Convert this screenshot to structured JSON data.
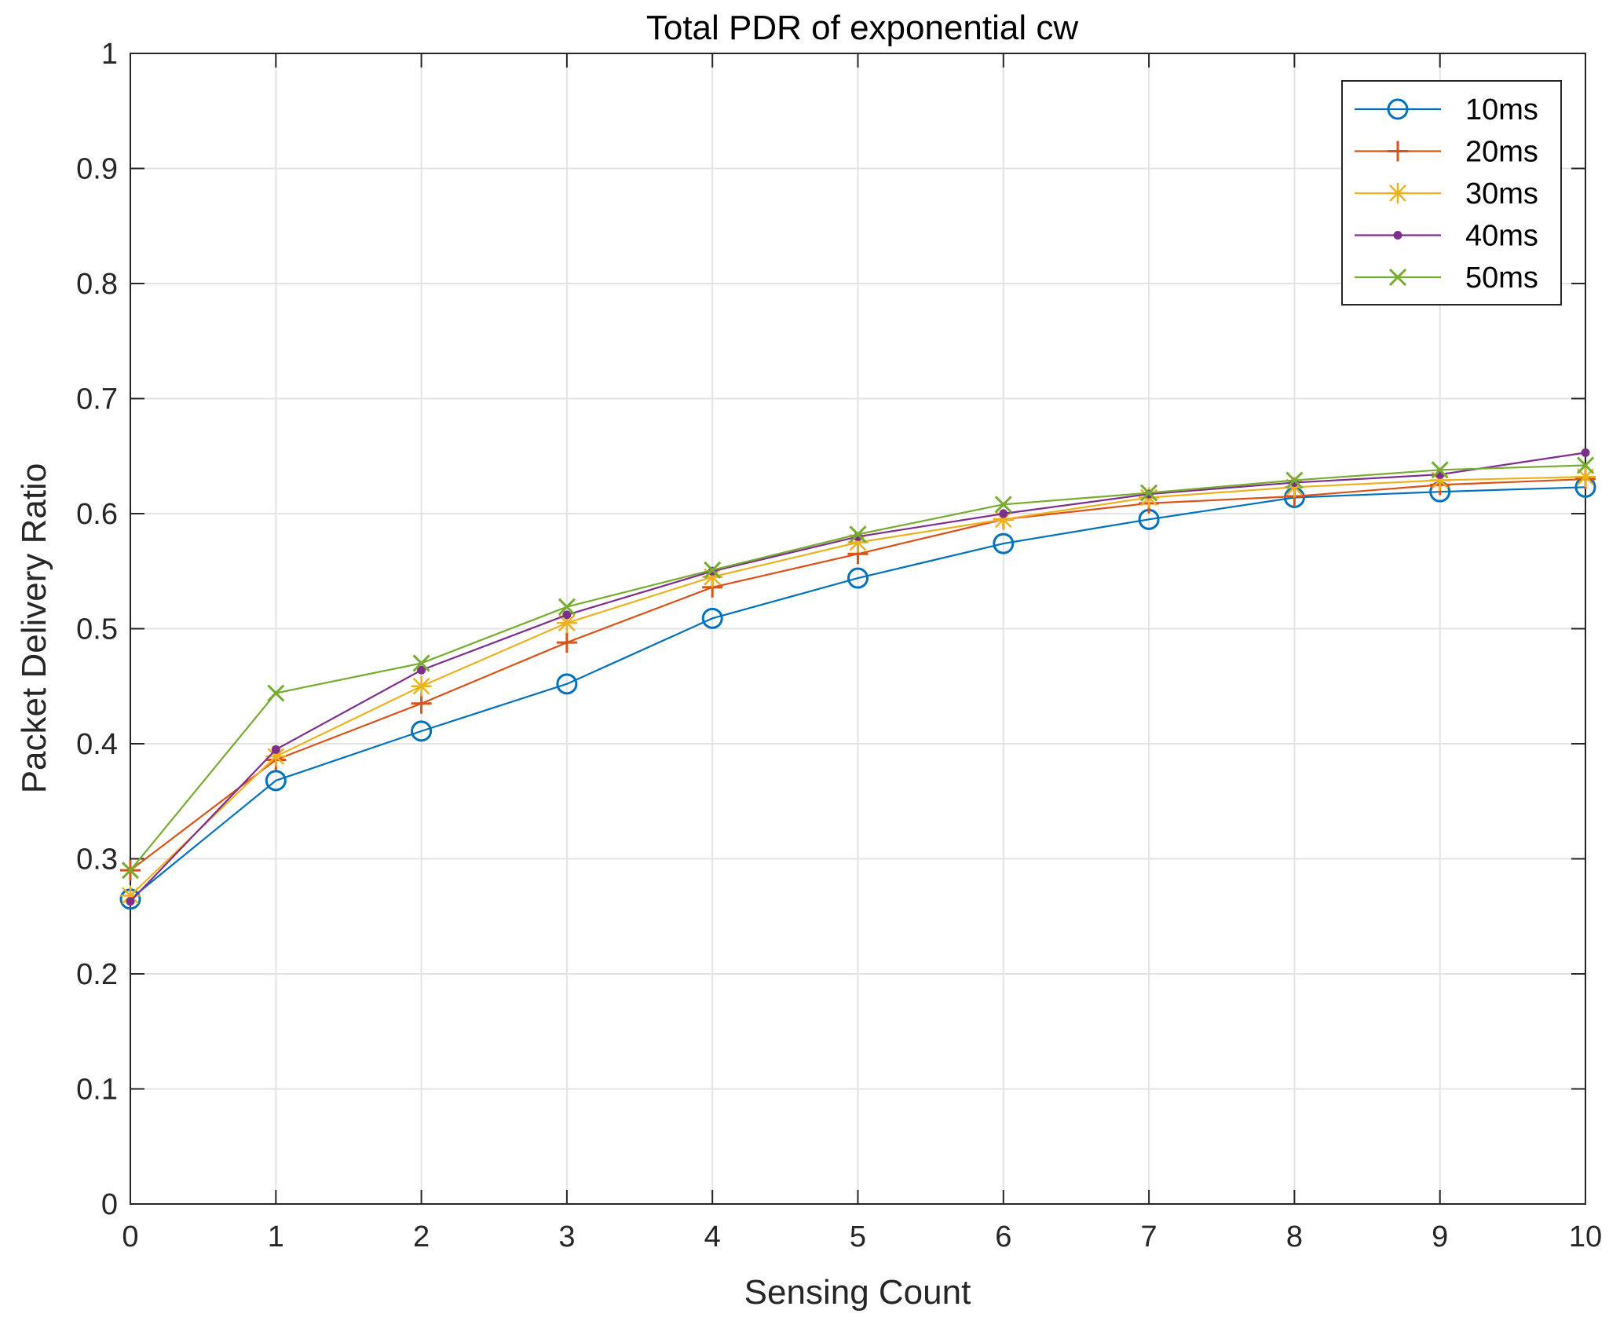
{
  "chart_data": {
    "type": "line",
    "title": "Total PDR of exponential cw",
    "xlabel": "Sensing Count",
    "ylabel": "Packet Delivery Ratio",
    "xlim": [
      0,
      10
    ],
    "ylim": [
      0,
      1
    ],
    "grid": true,
    "legend_position": "top-right",
    "x": [
      0,
      1,
      2,
      3,
      4,
      5,
      6,
      7,
      8,
      9,
      10
    ],
    "x_ticks": [
      "0",
      "1",
      "2",
      "3",
      "4",
      "5",
      "6",
      "7",
      "8",
      "9",
      "10"
    ],
    "y_ticks": [
      "0",
      "0.1",
      "0.2",
      "0.3",
      "0.4",
      "0.5",
      "0.6",
      "0.7",
      "0.8",
      "0.9",
      "1"
    ],
    "series": [
      {
        "name": "10ms",
        "color": "#0072BD",
        "marker": "circle",
        "values": [
          0.265,
          0.368,
          0.411,
          0.452,
          0.509,
          0.544,
          0.574,
          0.595,
          0.614,
          0.619,
          0.623
        ]
      },
      {
        "name": "20ms",
        "color": "#D95319",
        "marker": "plus",
        "values": [
          0.29,
          0.386,
          0.435,
          0.488,
          0.536,
          0.565,
          0.595,
          0.609,
          0.615,
          0.625,
          0.63
        ]
      },
      {
        "name": "30ms",
        "color": "#EDB120",
        "marker": "star",
        "values": [
          0.268,
          0.389,
          0.45,
          0.505,
          0.545,
          0.575,
          0.595,
          0.614,
          0.623,
          0.629,
          0.632
        ]
      },
      {
        "name": "40ms",
        "color": "#7E2F8E",
        "marker": "dot",
        "values": [
          0.263,
          0.395,
          0.464,
          0.512,
          0.55,
          0.58,
          0.6,
          0.617,
          0.627,
          0.634,
          0.653
        ]
      },
      {
        "name": "50ms",
        "color": "#77AC30",
        "marker": "x",
        "values": [
          0.29,
          0.444,
          0.47,
          0.519,
          0.551,
          0.582,
          0.608,
          0.618,
          0.629,
          0.638,
          0.642
        ]
      }
    ]
  }
}
